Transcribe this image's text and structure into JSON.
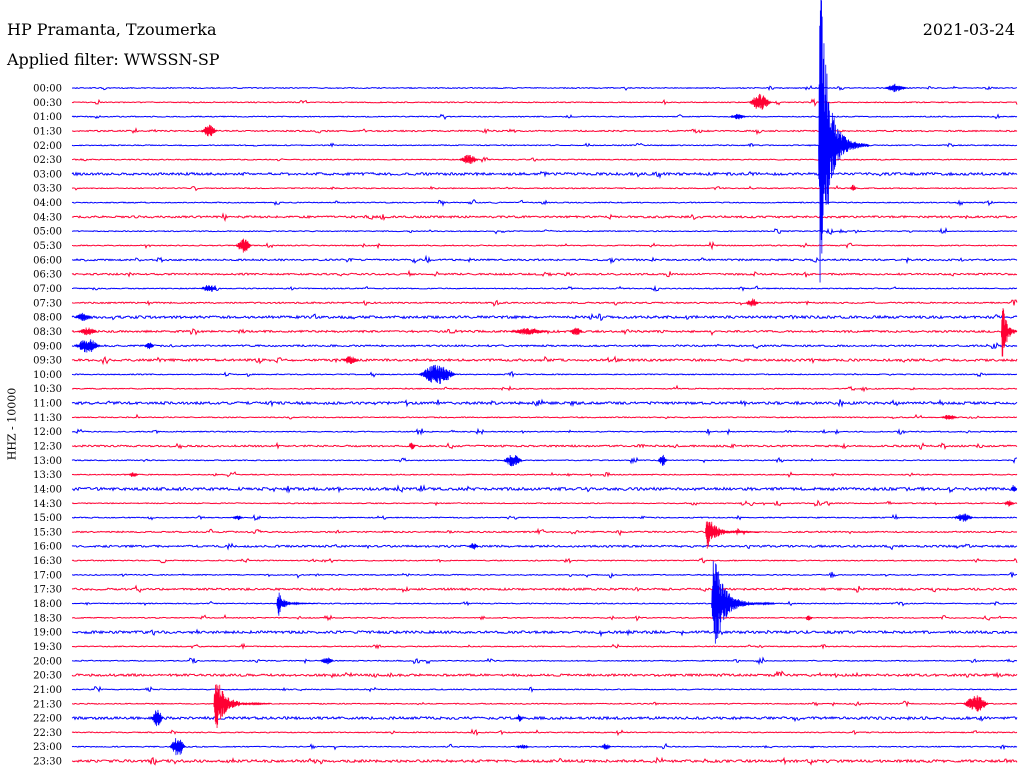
{
  "chart_data": {
    "type": "line",
    "title": "HP Pramanta, Tzoumerka",
    "subtitle": "Applied filter: WWSSN-SP",
    "date": "2021-03-24",
    "ylabel": "HHZ - 10000",
    "xlim": [
      0,
      30
    ],
    "grid": false,
    "colors": {
      "hour_trace": "#0000ff",
      "half_hour_trace": "#ff0033",
      "background": "#ffffff"
    },
    "rows": [
      {
        "label": "00:00",
        "noise": 0.035
      },
      {
        "label": "00:30",
        "noise": 0.035
      },
      {
        "label": "01:00",
        "noise": 0.035
      },
      {
        "label": "01:30",
        "noise": 0.05
      },
      {
        "label": "02:00",
        "noise": 0.035
      },
      {
        "label": "02:30",
        "noise": 0.035
      },
      {
        "label": "03:00",
        "noise": 0.09
      },
      {
        "label": "03:30",
        "noise": 0.035
      },
      {
        "label": "04:00",
        "noise": 0.035
      },
      {
        "label": "04:30",
        "noise": 0.07
      },
      {
        "label": "05:00",
        "noise": 0.035
      },
      {
        "label": "05:30",
        "noise": 0.035
      },
      {
        "label": "06:00",
        "noise": 0.06
      },
      {
        "label": "06:30",
        "noise": 0.06
      },
      {
        "label": "07:00",
        "noise": 0.035
      },
      {
        "label": "07:30",
        "noise": 0.05
      },
      {
        "label": "08:00",
        "noise": 0.09
      },
      {
        "label": "08:30",
        "noise": 0.07
      },
      {
        "label": "09:00",
        "noise": 0.06
      },
      {
        "label": "09:30",
        "noise": 0.08
      },
      {
        "label": "10:00",
        "noise": 0.035
      },
      {
        "label": "10:30",
        "noise": 0.035
      },
      {
        "label": "11:00",
        "noise": 0.09
      },
      {
        "label": "11:30",
        "noise": 0.035
      },
      {
        "label": "12:00",
        "noise": 0.035
      },
      {
        "label": "12:30",
        "noise": 0.06
      },
      {
        "label": "13:00",
        "noise": 0.035
      },
      {
        "label": "13:30",
        "noise": 0.035
      },
      {
        "label": "14:00",
        "noise": 0.1
      },
      {
        "label": "14:30",
        "noise": 0.035
      },
      {
        "label": "15:00",
        "noise": 0.035
      },
      {
        "label": "15:30",
        "noise": 0.05
      },
      {
        "label": "16:00",
        "noise": 0.07
      },
      {
        "label": "16:30",
        "noise": 0.035
      },
      {
        "label": "17:00",
        "noise": 0.035
      },
      {
        "label": "17:30",
        "noise": 0.07
      },
      {
        "label": "18:00",
        "noise": 0.035
      },
      {
        "label": "18:30",
        "noise": 0.035
      },
      {
        "label": "19:00",
        "noise": 0.09
      },
      {
        "label": "19:30",
        "noise": 0.035
      },
      {
        "label": "20:00",
        "noise": 0.035
      },
      {
        "label": "20:30",
        "noise": 0.08
      },
      {
        "label": "21:00",
        "noise": 0.035
      },
      {
        "label": "21:30",
        "noise": 0.035
      },
      {
        "label": "22:00",
        "noise": 0.09
      },
      {
        "label": "22:30",
        "noise": 0.035
      },
      {
        "label": "23:00",
        "noise": 0.035
      },
      {
        "label": "23:30",
        "noise": 0.09
      }
    ],
    "events": [
      {
        "row": "00:00",
        "offset_min": 25.8,
        "amplitude": 0.3,
        "duration_min": 0.7
      },
      {
        "row": "00:30",
        "offset_min": 21.5,
        "amplitude": 0.6,
        "duration_min": 0.7
      },
      {
        "row": "01:00",
        "offset_min": 20.9,
        "amplitude": 0.2,
        "duration_min": 0.5
      },
      {
        "row": "01:30",
        "offset_min": 4.1,
        "amplitude": 0.45,
        "duration_min": 0.5
      },
      {
        "row": "02:00",
        "offset_min": 23.7,
        "amplitude": 17,
        "duration_min": 1.6
      },
      {
        "row": "02:30",
        "offset_min": 12.3,
        "amplitude": 0.35,
        "duration_min": 0.6
      },
      {
        "row": "03:30",
        "offset_min": 24.7,
        "amplitude": 0.25,
        "duration_min": 0.2
      },
      {
        "row": "05:30",
        "offset_min": 5.2,
        "amplitude": 0.5,
        "duration_min": 0.5
      },
      {
        "row": "07:00",
        "offset_min": 4.1,
        "amplitude": 0.3,
        "duration_min": 0.5
      },
      {
        "row": "07:30",
        "offset_min": 21.4,
        "amplitude": 0.3,
        "duration_min": 0.4
      },
      {
        "row": "08:00",
        "offset_min": 0.1,
        "amplitude": 0.3,
        "duration_min": 0.5
      },
      {
        "row": "08:30",
        "offset_min": 0.2,
        "amplitude": 0.3,
        "duration_min": 0.6
      },
      {
        "row": "08:30",
        "offset_min": 13.9,
        "amplitude": 0.25,
        "duration_min": 1.2
      },
      {
        "row": "08:30",
        "offset_min": 15.8,
        "amplitude": 0.3,
        "duration_min": 0.4
      },
      {
        "row": "08:30",
        "offset_min": 29.5,
        "amplitude": 4.0,
        "duration_min": 0.8
      },
      {
        "row": "09:00",
        "offset_min": 0.1,
        "amplitude": 0.5,
        "duration_min": 0.8
      },
      {
        "row": "09:00",
        "offset_min": 2.3,
        "amplitude": 0.25,
        "duration_min": 0.3
      },
      {
        "row": "09:30",
        "offset_min": 8.6,
        "amplitude": 0.3,
        "duration_min": 0.5
      },
      {
        "row": "10:00",
        "offset_min": 11.0,
        "amplitude": 0.7,
        "duration_min": 1.2
      },
      {
        "row": "11:30",
        "offset_min": 27.6,
        "amplitude": 0.2,
        "duration_min": 0.5
      },
      {
        "row": "12:30",
        "offset_min": 10.7,
        "amplitude": 0.25,
        "duration_min": 0.2
      },
      {
        "row": "13:00",
        "offset_min": 13.7,
        "amplitude": 0.45,
        "duration_min": 0.6
      },
      {
        "row": "13:00",
        "offset_min": 18.6,
        "amplitude": 0.4,
        "duration_min": 0.3
      },
      {
        "row": "13:30",
        "offset_min": 1.8,
        "amplitude": 0.2,
        "duration_min": 0.3
      },
      {
        "row": "14:00",
        "offset_min": 29.8,
        "amplitude": 0.3,
        "duration_min": 0.2
      },
      {
        "row": "14:30",
        "offset_min": 29.6,
        "amplitude": 0.25,
        "duration_min": 0.3
      },
      {
        "row": "15:00",
        "offset_min": 5.1,
        "amplitude": 0.2,
        "duration_min": 0.3
      },
      {
        "row": "15:00",
        "offset_min": 28.0,
        "amplitude": 0.3,
        "duration_min": 0.6
      },
      {
        "row": "15:30",
        "offset_min": 20.1,
        "amplitude": 1.7,
        "duration_min": 1.8
      },
      {
        "row": "16:00",
        "offset_min": 12.6,
        "amplitude": 0.25,
        "duration_min": 0.3
      },
      {
        "row": "18:00",
        "offset_min": 6.5,
        "amplitude": 1.3,
        "duration_min": 1.2
      },
      {
        "row": "18:00",
        "offset_min": 20.3,
        "amplitude": 5.2,
        "duration_min": 2.0
      },
      {
        "row": "18:30",
        "offset_min": 23.3,
        "amplitude": 0.2,
        "duration_min": 0.2
      },
      {
        "row": "20:00",
        "offset_min": 7.9,
        "amplitude": 0.25,
        "duration_min": 0.4
      },
      {
        "row": "21:30",
        "offset_min": 4.5,
        "amplitude": 3.0,
        "duration_min": 1.8
      },
      {
        "row": "21:30",
        "offset_min": 28.3,
        "amplitude": 0.6,
        "duration_min": 0.8
      },
      {
        "row": "22:00",
        "offset_min": 2.5,
        "amplitude": 0.6,
        "duration_min": 0.4
      },
      {
        "row": "22:00",
        "offset_min": 14.1,
        "amplitude": 0.3,
        "duration_min": 0.2
      },
      {
        "row": "23:00",
        "offset_min": 3.1,
        "amplitude": 0.7,
        "duration_min": 0.5
      },
      {
        "row": "23:00",
        "offset_min": 14.1,
        "amplitude": 0.15,
        "duration_min": 0.4
      },
      {
        "row": "23:00",
        "offset_min": 16.8,
        "amplitude": 0.25,
        "duration_min": 0.3
      }
    ]
  }
}
